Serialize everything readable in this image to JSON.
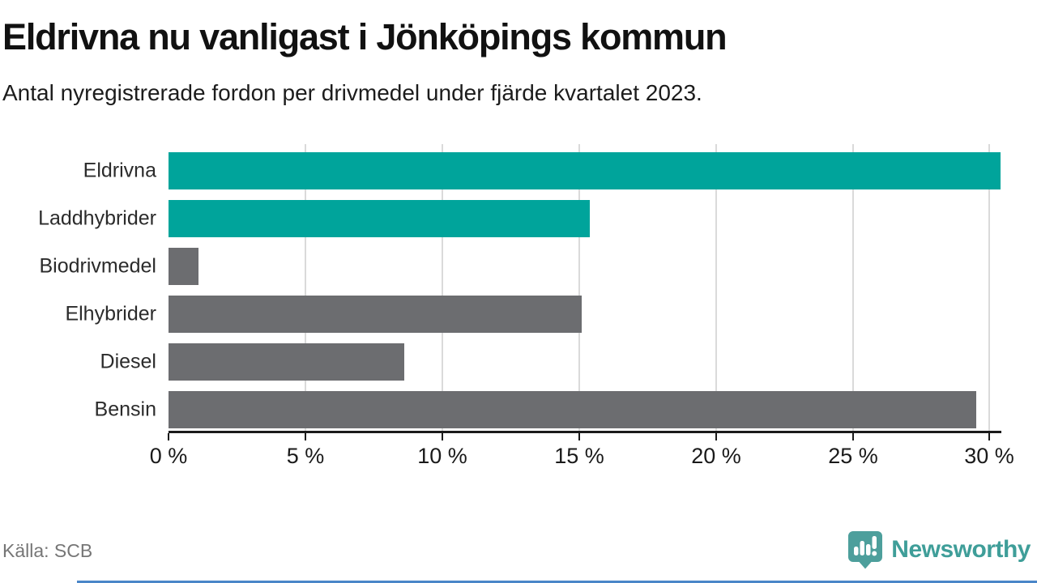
{
  "title": "Eldrivna nu vanligast i Jönköpings kommun",
  "subtitle": "Antal nyregistrerade fordon per drivmedel under fjärde kvartalet 2023.",
  "source": "Källa: SCB",
  "brand": {
    "name": "Newsworthy"
  },
  "colors": {
    "accent_teal": "#00a49b",
    "muted_gray": "#6c6d70",
    "grid": "#dadada",
    "axis": "#1a1a1a",
    "logo_teal": "#4d9f9c",
    "bottom_rule_blue": "#4a86c8"
  },
  "chart_data": {
    "type": "bar",
    "orientation": "horizontal",
    "title": "Eldrivna nu vanligast i Jönköpings kommun",
    "subtitle": "Antal nyregistrerade fordon per drivmedel under fjärde kvartalet 2023.",
    "categories": [
      "Eldrivna",
      "Laddhybrider",
      "Biodrivmedel",
      "Elhybrider",
      "Diesel",
      "Bensin"
    ],
    "values": [
      30.4,
      15.4,
      1.1,
      15.1,
      8.6,
      29.5
    ],
    "unit": "%",
    "bar_colors": [
      "#00a49b",
      "#00a49b",
      "#6c6d70",
      "#6c6d70",
      "#6c6d70",
      "#6c6d70"
    ],
    "x_ticks": [
      0,
      5,
      10,
      15,
      20,
      25,
      30
    ],
    "x_tick_labels": [
      "0 %",
      "5 %",
      "10 %",
      "15 %",
      "20 %",
      "25 %",
      "30 %"
    ],
    "xlim": [
      0,
      30.4
    ],
    "grid": true,
    "legend": false
  }
}
